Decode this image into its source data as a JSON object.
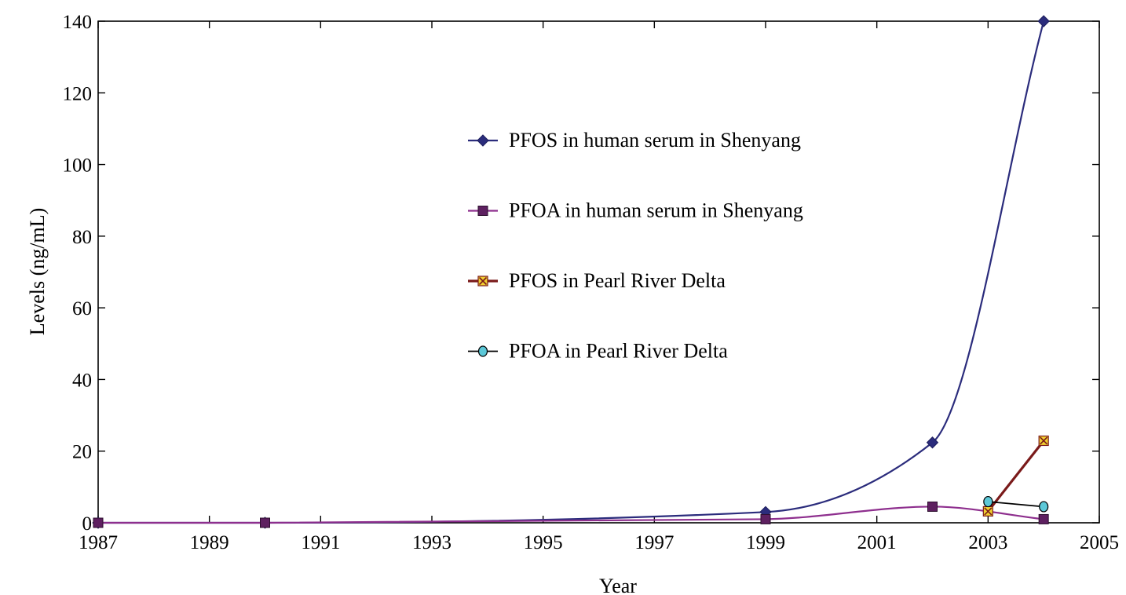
{
  "chart_data": {
    "type": "line",
    "title": "",
    "xlabel": "Year",
    "ylabel": "Levels (ng/mL)",
    "xlim": [
      1987,
      2005
    ],
    "ylim": [
      0,
      140
    ],
    "x_ticks": [
      1987,
      1989,
      1991,
      1993,
      1995,
      1997,
      1999,
      2001,
      2003,
      2005
    ],
    "y_ticks": [
      0,
      20,
      40,
      60,
      80,
      100,
      120,
      140
    ],
    "x_tick_labels": [
      "1987",
      "1989",
      "1991",
      "1993",
      "1995",
      "1997",
      "1999",
      "2001",
      "2003",
      "2005"
    ],
    "y_tick_labels": [
      "0",
      "20",
      "40",
      "60",
      "80",
      "100",
      "120",
      "140"
    ],
    "grid": false,
    "legend_position": "center",
    "series": [
      {
        "name": "PFOS in human serum in Shenyang",
        "color": "#2b2c7c",
        "marker": "diamond",
        "smooth": true,
        "x": [
          1987,
          1990,
          1999,
          2002,
          2004
        ],
        "y": [
          0,
          0,
          3,
          22.4,
          140
        ]
      },
      {
        "name": "PFOA in human serum in Shenyang",
        "color": "#8e2f8e",
        "marker": "square",
        "smooth": true,
        "x": [
          1987,
          1990,
          1999,
          2002,
          2004
        ],
        "y": [
          0,
          0,
          1,
          4.5,
          1
        ]
      },
      {
        "name": "PFOS in Pearl River Delta",
        "color": "#7a1a1a",
        "marker": "x-square",
        "smooth": false,
        "x": [
          2003,
          2004
        ],
        "y": [
          3.2,
          22.9
        ]
      },
      {
        "name": "PFOA in Pearl River Delta",
        "color": "#000000",
        "marker": "circle",
        "smooth": false,
        "x": [
          2003,
          2004
        ],
        "y": [
          5.9,
          4.5
        ]
      }
    ]
  }
}
